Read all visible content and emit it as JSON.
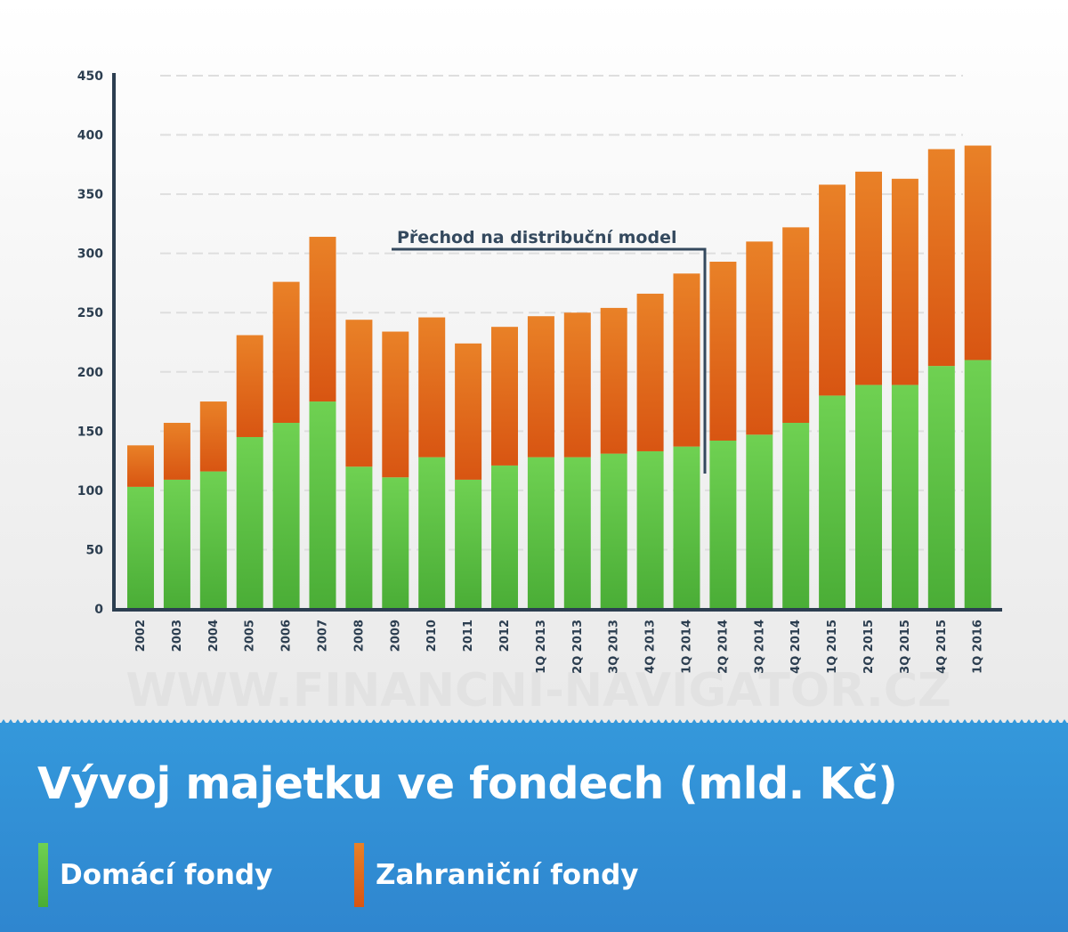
{
  "chart_data": {
    "type": "bar",
    "stacked": true,
    "categories": [
      "2002",
      "2003",
      "2004",
      "2005",
      "2006",
      "2007",
      "2008",
      "2009",
      "2010",
      "2011",
      "2012",
      "1Q 2013",
      "2Q 2013",
      "3Q 2013",
      "4Q 2013",
      "1Q 2014",
      "2Q 2014",
      "3Q 2014",
      "4Q 2014",
      "1Q 2015",
      "2Q 2015",
      "3Q 2015",
      "4Q 2015",
      "1Q 2016"
    ],
    "series": [
      {
        "name": "Domácí fondy",
        "color": "#5cc545",
        "values": [
          103,
          109,
          116,
          145,
          157,
          175,
          120,
          111,
          128,
          109,
          121,
          128,
          128,
          131,
          133,
          137,
          142,
          147,
          157,
          180,
          189,
          189,
          205,
          210
        ]
      },
      {
        "name": "Zahraniční fondy",
        "color": "#e06a1c",
        "values": [
          35,
          48,
          59,
          86,
          119,
          139,
          124,
          123,
          118,
          115,
          117,
          119,
          122,
          123,
          133,
          146,
          151,
          163,
          165,
          178,
          180,
          174,
          183,
          181
        ]
      }
    ],
    "ylim": [
      0,
      450
    ],
    "yticks": [
      "0",
      "50",
      "100",
      "150",
      "200",
      "250",
      "300",
      "350",
      "400",
      "450"
    ],
    "grid": true,
    "annotation": {
      "text": "Přechod na distribuční model",
      "after_category": "1Q 2014"
    },
    "title": "Vývoj majetku ve fondech (mld. Kč)",
    "xlabel": "",
    "ylabel": ""
  },
  "watermark": "WWW.FINANCNI-NAVIGATOR.CZ",
  "footer": {
    "title": "Vývoj majetku ve fondech (mld. Kč)",
    "legend": [
      {
        "label": "Domácí fondy",
        "color": "#5cc545"
      },
      {
        "label": "Zahraniční fondy",
        "color": "#e06a1c"
      }
    ]
  }
}
